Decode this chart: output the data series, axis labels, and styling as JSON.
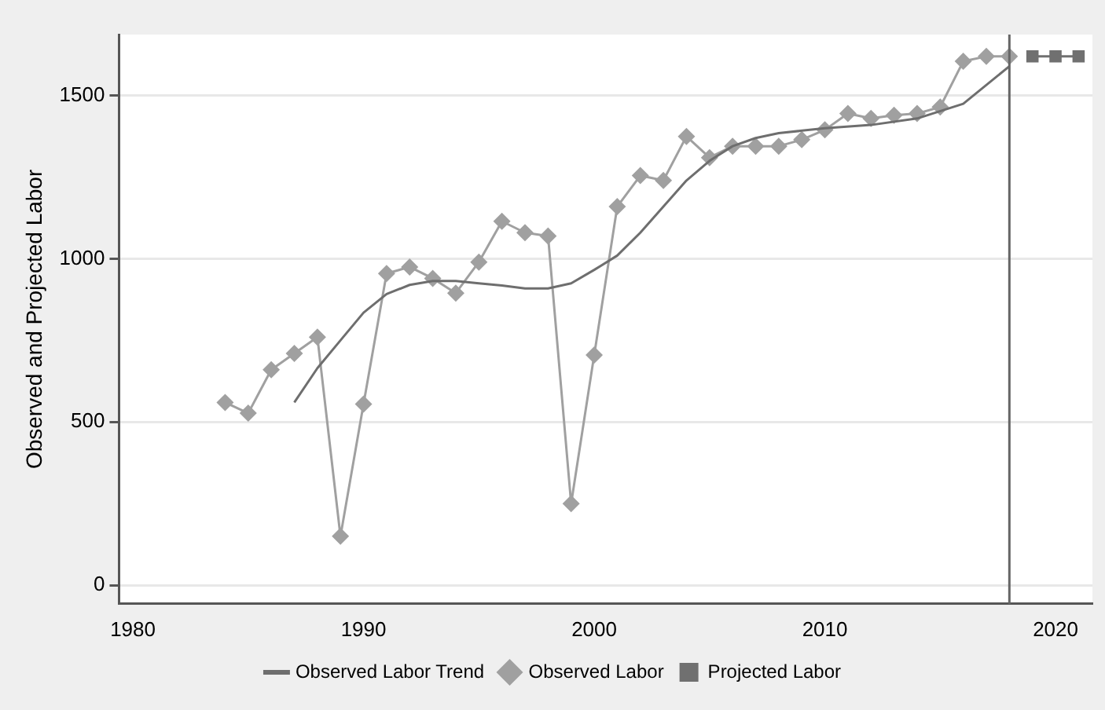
{
  "chart_data": {
    "type": "line",
    "ylabel": "Observed and Projected Labor",
    "xlim": [
      1979.4,
      2021.6
    ],
    "xticks": [
      1980,
      1990,
      2000,
      2010,
      2020
    ],
    "ylim": [
      -57,
      1687
    ],
    "yticks": [
      0,
      500,
      1000,
      1500
    ],
    "grid": "y",
    "legend": "bottom",
    "ref_lines": [
      {
        "axis": "x",
        "value": 2018,
        "color": "#666666"
      }
    ],
    "series": [
      {
        "name": "Observed Labor Trend",
        "color": "#6e6e6e",
        "marker": "none",
        "x": [
          1987,
          1988,
          1989,
          1990,
          1991,
          1992,
          1993,
          1994,
          1995,
          1996,
          1997,
          1998,
          1999,
          2000,
          2001,
          2002,
          2003,
          2004,
          2005,
          2006,
          2007,
          2008,
          2010,
          2012,
          2014,
          2016,
          2018
        ],
        "values": [
          560,
          665,
          750,
          835,
          892,
          920,
          932,
          932,
          925,
          918,
          909,
          909,
          925,
          966,
          1010,
          1080,
          1160,
          1240,
          1300,
          1345,
          1370,
          1385,
          1400,
          1410,
          1430,
          1475,
          1590
        ]
      },
      {
        "name": "Observed Labor",
        "color": "#a0a0a0",
        "marker": "diamond",
        "x": [
          1984,
          1985,
          1986,
          1987,
          1988,
          1989,
          1990,
          1991,
          1992,
          1993,
          1994,
          1995,
          1996,
          1997,
          1998,
          1999,
          2000,
          2001,
          2002,
          2003,
          2004,
          2005,
          2006,
          2007,
          2008,
          2009,
          2010,
          2011,
          2012,
          2013,
          2014,
          2015,
          2016,
          2017,
          2018
        ],
        "values": [
          560,
          527,
          660,
          710,
          760,
          150,
          555,
          955,
          975,
          940,
          895,
          990,
          1115,
          1080,
          1070,
          250,
          705,
          1160,
          1255,
          1240,
          1375,
          1310,
          1345,
          1345,
          1345,
          1365,
          1395,
          1445,
          1430,
          1440,
          1445,
          1465,
          1605,
          1620,
          1620
        ]
      },
      {
        "name": "Projected Labor",
        "color": "#707070",
        "marker": "square",
        "x": [
          2019,
          2020,
          2021
        ],
        "values": [
          1620,
          1620,
          1620
        ]
      }
    ]
  }
}
